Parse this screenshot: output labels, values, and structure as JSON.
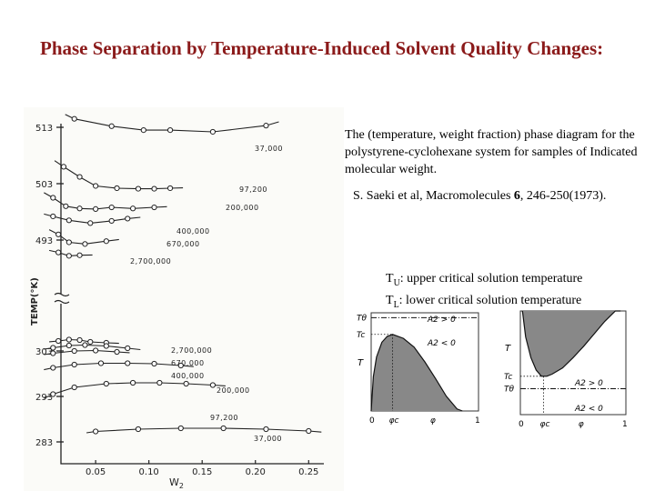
{
  "slide": {
    "title": "Phase Separation by Temperature-Induced Solvent Quality Changes:",
    "description": "The (temperature, weight fraction) phase diagram for the polystyrene-cyclohexane system for samples of Indicated molecular weight.",
    "citation": {
      "authors": "S. Saeki et al, Macromolecules ",
      "volume": "6",
      "pages": ", 246-250(1973)."
    },
    "definitions": [
      {
        "sym": "T",
        "sub": "U",
        "text": ": upper critical solution temperature"
      },
      {
        "sym": "T",
        "sub": "L",
        "text": ": lower critical solution temperature"
      }
    ]
  },
  "chart_data": [
    {
      "type": "scatter",
      "xlabel": "W2",
      "ylabel": "TEMP(°K)",
      "x_ticks": [
        "0.05",
        "0.10",
        "0.15",
        "0.20",
        "0.25"
      ],
      "y_ticks": [
        "513",
        "503",
        "493",
        "303",
        "293",
        "283"
      ],
      "upper_branch": [
        {
          "label": "37,000",
          "x": [
            0.03,
            0.065,
            0.095,
            0.12,
            0.16,
            0.21
          ],
          "y": [
            514.5,
            513.2,
            512.5,
            512.5,
            512.2,
            513.3
          ]
        },
        {
          "label": "97,200",
          "x": [
            0.02,
            0.035,
            0.05,
            0.07,
            0.09,
            0.105,
            0.12
          ],
          "y": [
            506.0,
            504.2,
            502.6,
            502.2,
            502.1,
            502.1,
            502.2
          ]
        },
        {
          "label": "200,000",
          "x": [
            0.01,
            0.022,
            0.035,
            0.05,
            0.065,
            0.085,
            0.105
          ],
          "y": [
            500.5,
            499.0,
            498.6,
            498.5,
            498.8,
            498.6,
            498.8
          ]
        },
        {
          "label": "400,000",
          "x": [
            0.01,
            0.025,
            0.045,
            0.065,
            0.08
          ],
          "y": [
            497.2,
            496.5,
            496.0,
            496.4,
            496.8
          ]
        },
        {
          "label": "670,000",
          "x": [
            0.015,
            0.025,
            0.04,
            0.06
          ],
          "y": [
            494.0,
            492.6,
            492.3,
            492.8
          ]
        },
        {
          "label": "2,700,000",
          "x": [
            0.015,
            0.025,
            0.035
          ],
          "y": [
            490.8,
            490.2,
            490.3
          ]
        }
      ],
      "lower_branch": [
        {
          "label": "2,700,000",
          "x": [
            0.015,
            0.025,
            0.035,
            0.045,
            0.06
          ],
          "y": [
            305.2,
            305.5,
            305.4,
            305.0,
            304.8
          ]
        },
        {
          "label": "670,000",
          "x": [
            0.01,
            0.025,
            0.04,
            0.06,
            0.08
          ],
          "y": [
            303.7,
            304.2,
            304.3,
            304.1,
            303.6
          ]
        },
        {
          "label": "400,000",
          "x": [
            0.01,
            0.03,
            0.05,
            0.07
          ],
          "y": [
            302.5,
            303.0,
            303.1,
            302.8
          ]
        },
        {
          "label": "200,000",
          "x": [
            0.01,
            0.03,
            0.055,
            0.08,
            0.105,
            0.13
          ],
          "y": [
            299.3,
            300.0,
            300.3,
            300.3,
            300.2,
            299.8
          ]
        },
        {
          "label": "97,200",
          "x": [
            0.01,
            0.03,
            0.06,
            0.085,
            0.11,
            0.135,
            0.16
          ],
          "y": [
            293.5,
            295.0,
            295.8,
            296.0,
            296.0,
            295.8,
            295.5
          ]
        },
        {
          "label": "37,000",
          "x": [
            0.05,
            0.09,
            0.13,
            0.17,
            0.21,
            0.25
          ],
          "y": [
            285.3,
            285.8,
            286.0,
            286.0,
            285.8,
            285.4
          ]
        }
      ]
    },
    {
      "type": "line",
      "variant": "ucst",
      "labels": {
        "t_theta": "Tθ",
        "t_c": "Tc",
        "t": "T",
        "phi_c": "φc",
        "phi": "φ",
        "zero": "0",
        "one": "1",
        "a2_pos": "A2 > 0",
        "a2_neg": "A2 < 0"
      },
      "binodal": {
        "x": [
          0.0,
          0.02,
          0.05,
          0.1,
          0.15,
          0.2,
          0.3,
          0.4,
          0.5,
          0.6,
          0.7,
          0.8,
          0.85
        ],
        "y": [
          0.0,
          0.35,
          0.55,
          0.7,
          0.76,
          0.78,
          0.74,
          0.65,
          0.5,
          0.33,
          0.15,
          0.02,
          0.0
        ]
      },
      "critical_phi": 0.2,
      "t_theta_level": 0.95,
      "t_c_level": 0.78
    },
    {
      "type": "line",
      "variant": "lcst",
      "labels": {
        "t": "T",
        "t_c": "Tc",
        "t_theta": "Tθ",
        "phi_c": "φc",
        "phi": "φ",
        "zero": "0",
        "one": "1",
        "a2_pos": "A2 > 0",
        "a2_neg": "A2 < 0"
      },
      "binodal": {
        "x": [
          0.02,
          0.05,
          0.1,
          0.15,
          0.2,
          0.25,
          0.3,
          0.4,
          0.5,
          0.6,
          0.7,
          0.8,
          0.9,
          0.95
        ],
        "y": [
          1.0,
          0.75,
          0.55,
          0.43,
          0.37,
          0.37,
          0.39,
          0.45,
          0.55,
          0.66,
          0.78,
          0.9,
          1.0,
          1.0
        ]
      },
      "critical_phi": 0.22,
      "t_theta_level": 0.25,
      "t_c_level": 0.37
    }
  ]
}
